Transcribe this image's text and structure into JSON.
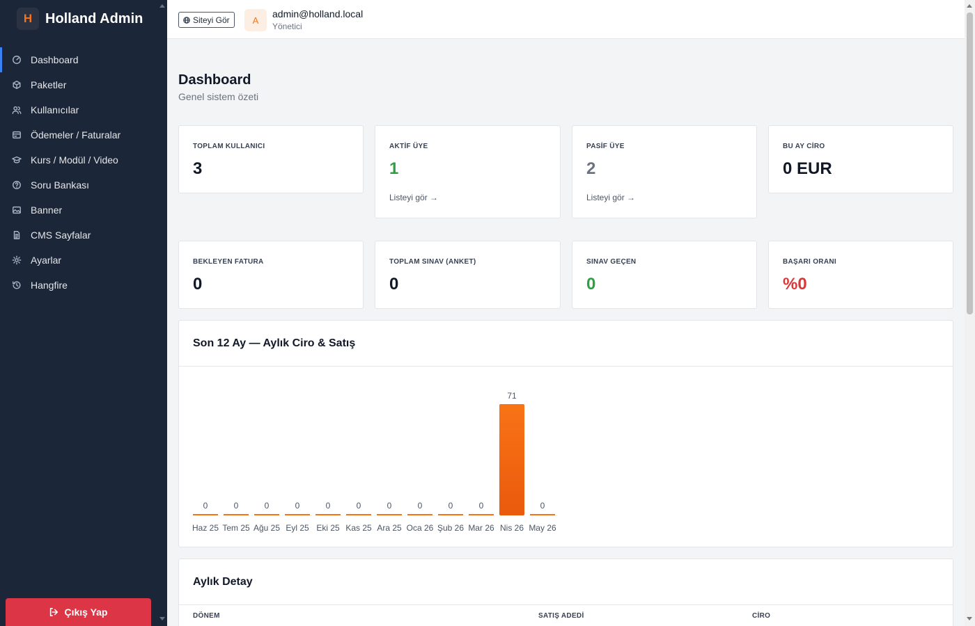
{
  "brand": {
    "logo_letter": "H",
    "title": "Holland Admin"
  },
  "sidebar": {
    "items": [
      {
        "label": "Dashboard",
        "icon": "dashboard-icon",
        "active": true
      },
      {
        "label": "Paketler",
        "icon": "package-icon"
      },
      {
        "label": "Kullanıcılar",
        "icon": "users-icon"
      },
      {
        "label": "Ödemeler / Faturalar",
        "icon": "payment-icon"
      },
      {
        "label": "Kurs / Modül / Video",
        "icon": "graduation-cap-icon"
      },
      {
        "label": "Soru Bankası",
        "icon": "question-icon"
      },
      {
        "label": "Banner",
        "icon": "image-icon"
      },
      {
        "label": "CMS Sayfalar",
        "icon": "document-icon"
      },
      {
        "label": "Ayarlar",
        "icon": "gear-icon"
      },
      {
        "label": "Hangfire",
        "icon": "history-icon"
      }
    ],
    "logout_label": "Çıkış Yap"
  },
  "topbar": {
    "site_button": "Siteyi Gör",
    "avatar_letter": "A",
    "user_email": "admin@holland.local",
    "user_role": "Yönetici"
  },
  "page": {
    "title": "Dashboard",
    "subtitle": "Genel sistem özeti"
  },
  "stats_row1": [
    {
      "label": "TOPLAM KULLANICI",
      "value": "3",
      "color": "#111827"
    },
    {
      "label": "AKTİF ÜYE",
      "value": "1",
      "color": "#2ea043",
      "link": "Listeyi gör →"
    },
    {
      "label": "PASİF ÜYE",
      "value": "2",
      "color": "#6b7280",
      "link": "Listeyi gör →"
    },
    {
      "label": "BU AY CİRO",
      "value": "0 EUR",
      "color": "#111827"
    }
  ],
  "stats_row2": [
    {
      "label": "BEKLEYEN FATURA",
      "value": "0",
      "color": "#111827"
    },
    {
      "label": "TOPLAM SINAV (ANKET)",
      "value": "0",
      "color": "#111827"
    },
    {
      "label": "SINAV GEÇEN",
      "value": "0",
      "color": "#2ea043"
    },
    {
      "label": "BAŞARI ORANI",
      "value": "%0",
      "color": "#d63939"
    }
  ],
  "chart_title": "Son 12 Ay — Aylık Ciro & Satış",
  "chart_data": {
    "type": "bar",
    "title": "Son 12 Ay — Aylık Ciro & Satış",
    "categories": [
      "Haz 25",
      "Tem 25",
      "Ağu 25",
      "Eyl 25",
      "Eki 25",
      "Kas 25",
      "Ara 25",
      "Oca 26",
      "Şub 26",
      "Mar 26",
      "Nis 26",
      "May 26"
    ],
    "values": [
      0,
      0,
      0,
      0,
      0,
      0,
      0,
      0,
      0,
      0,
      71,
      0
    ],
    "xlabel": "",
    "ylabel": "",
    "ylim": [
      0,
      71
    ],
    "grid": false,
    "bar_color": "#f97316"
  },
  "table": {
    "title": "Aylık Detay",
    "columns": [
      "DÖNEM",
      "SATIŞ ADEDİ",
      "CİRO"
    ]
  }
}
